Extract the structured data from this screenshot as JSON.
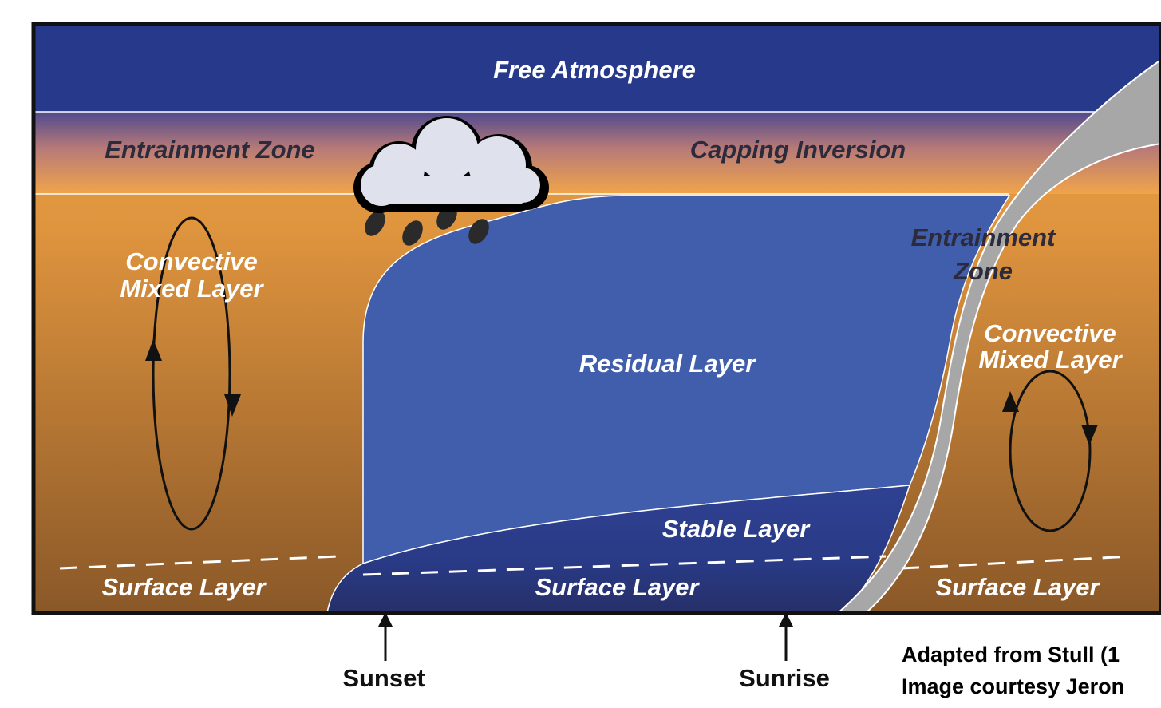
{
  "diagram": {
    "free_atmosphere": "Free Atmosphere",
    "entrainment_zone_left": "Entrainment Zone",
    "capping_inversion": "Capping Inversion",
    "convective_mixed_layer_left": [
      "Convective",
      "Mixed Layer"
    ],
    "residual_layer": "Residual Layer",
    "entrainment_zone_right": [
      "Entrainment",
      "Zone"
    ],
    "convective_mixed_layer_right": [
      "Convective",
      "Mixed Layer"
    ],
    "stable_layer": "Stable Layer",
    "surface_layer_left": "Surface Layer",
    "surface_layer_middle": "Surface Layer",
    "surface_layer_right": "Surface Layer",
    "sunset": "Sunset",
    "sunrise": "Sunrise"
  },
  "credit": [
    "Adapted from Stull (1",
    "Image courtesy Jeron"
  ]
}
